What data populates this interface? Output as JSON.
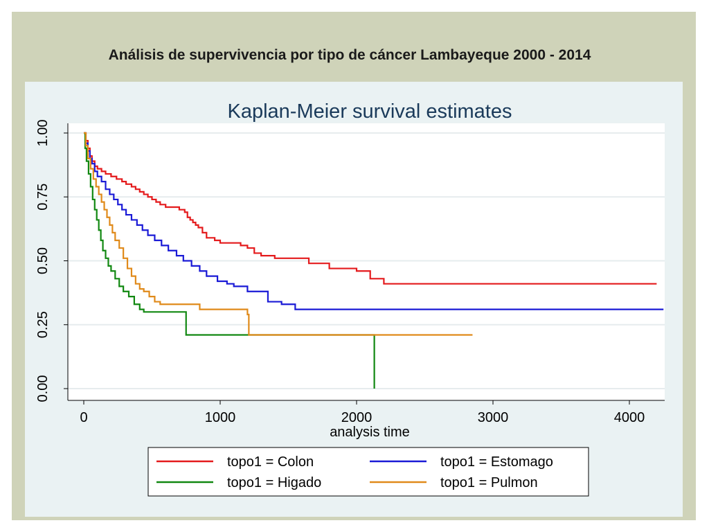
{
  "slide": {
    "title": "Análisis de supervivencia por tipo de cáncer Lambayeque 2000 - 2014"
  },
  "colors": {
    "background_frame": "#cfd3b9",
    "chart_panel": "#eaf2f3",
    "plot_area": "#ffffff",
    "title_text": "#1a3a5a"
  },
  "chart_data": {
    "type": "line",
    "title": "Kaplan-Meier survival estimates",
    "xlabel": "analysis time",
    "ylabel": "",
    "xlim": [
      0,
      4250
    ],
    "ylim": [
      0,
      1
    ],
    "x_ticks": [
      0,
      1000,
      2000,
      3000,
      4000
    ],
    "x_tick_labels": [
      "0",
      "1000",
      "2000",
      "3000",
      "4000"
    ],
    "y_ticks": [
      0,
      0.25,
      0.5,
      0.75,
      1
    ],
    "y_tick_labels": [
      "0.00",
      "0.25",
      "0.50",
      "0.75",
      "1.00"
    ],
    "grid": true,
    "legend_position": "bottom",
    "series": [
      {
        "name": "topo1 = Colon",
        "color": "#e41a1c",
        "steps": [
          [
            0,
            1.0
          ],
          [
            15,
            0.97
          ],
          [
            30,
            0.94
          ],
          [
            45,
            0.91
          ],
          [
            60,
            0.89
          ],
          [
            80,
            0.87
          ],
          [
            100,
            0.86
          ],
          [
            130,
            0.85
          ],
          [
            160,
            0.84
          ],
          [
            200,
            0.83
          ],
          [
            240,
            0.82
          ],
          [
            280,
            0.81
          ],
          [
            310,
            0.8
          ],
          [
            350,
            0.79
          ],
          [
            380,
            0.78
          ],
          [
            410,
            0.77
          ],
          [
            440,
            0.76
          ],
          [
            470,
            0.75
          ],
          [
            500,
            0.74
          ],
          [
            530,
            0.73
          ],
          [
            560,
            0.72
          ],
          [
            600,
            0.71
          ],
          [
            700,
            0.7
          ],
          [
            740,
            0.69
          ],
          [
            760,
            0.67
          ],
          [
            780,
            0.66
          ],
          [
            800,
            0.65
          ],
          [
            820,
            0.64
          ],
          [
            840,
            0.63
          ],
          [
            870,
            0.61
          ],
          [
            900,
            0.59
          ],
          [
            960,
            0.58
          ],
          [
            1000,
            0.57
          ],
          [
            1150,
            0.56
          ],
          [
            1200,
            0.55
          ],
          [
            1250,
            0.53
          ],
          [
            1300,
            0.52
          ],
          [
            1400,
            0.51
          ],
          [
            1650,
            0.49
          ],
          [
            1800,
            0.47
          ],
          [
            2000,
            0.46
          ],
          [
            2100,
            0.43
          ],
          [
            2200,
            0.41
          ],
          [
            4200,
            0.41
          ]
        ]
      },
      {
        "name": "topo1 = Estomago",
        "color": "#1a1ad6",
        "steps": [
          [
            0,
            1.0
          ],
          [
            15,
            0.96
          ],
          [
            30,
            0.93
          ],
          [
            45,
            0.9
          ],
          [
            60,
            0.88
          ],
          [
            80,
            0.85
          ],
          [
            100,
            0.83
          ],
          [
            130,
            0.81
          ],
          [
            160,
            0.78
          ],
          [
            190,
            0.76
          ],
          [
            220,
            0.74
          ],
          [
            250,
            0.72
          ],
          [
            280,
            0.7
          ],
          [
            310,
            0.68
          ],
          [
            350,
            0.66
          ],
          [
            390,
            0.64
          ],
          [
            430,
            0.62
          ],
          [
            470,
            0.6
          ],
          [
            520,
            0.58
          ],
          [
            570,
            0.56
          ],
          [
            620,
            0.54
          ],
          [
            680,
            0.52
          ],
          [
            730,
            0.5
          ],
          [
            790,
            0.48
          ],
          [
            850,
            0.46
          ],
          [
            900,
            0.44
          ],
          [
            980,
            0.42
          ],
          [
            1050,
            0.41
          ],
          [
            1100,
            0.4
          ],
          [
            1200,
            0.38
          ],
          [
            1350,
            0.34
          ],
          [
            1450,
            0.33
          ],
          [
            1550,
            0.31
          ],
          [
            4250,
            0.31
          ]
        ]
      },
      {
        "name": "topo1 = Higado",
        "color": "#118811",
        "steps": [
          [
            0,
            1.0
          ],
          [
            10,
            0.94
          ],
          [
            20,
            0.89
          ],
          [
            35,
            0.84
          ],
          [
            50,
            0.79
          ],
          [
            65,
            0.74
          ],
          [
            80,
            0.7
          ],
          [
            95,
            0.66
          ],
          [
            110,
            0.62
          ],
          [
            125,
            0.58
          ],
          [
            140,
            0.54
          ],
          [
            160,
            0.51
          ],
          [
            180,
            0.48
          ],
          [
            200,
            0.46
          ],
          [
            230,
            0.43
          ],
          [
            260,
            0.4
          ],
          [
            290,
            0.38
          ],
          [
            330,
            0.36
          ],
          [
            370,
            0.33
          ],
          [
            410,
            0.31
          ],
          [
            440,
            0.3
          ],
          [
            500,
            0.3
          ],
          [
            740,
            0.3
          ],
          [
            750,
            0.21
          ],
          [
            1000,
            0.21
          ],
          [
            2100,
            0.21
          ],
          [
            2130,
            0.0
          ]
        ]
      },
      {
        "name": "topo1 = Pulmon",
        "color": "#e08a1a",
        "steps": [
          [
            0,
            1.0
          ],
          [
            15,
            0.95
          ],
          [
            30,
            0.9
          ],
          [
            50,
            0.86
          ],
          [
            70,
            0.82
          ],
          [
            90,
            0.79
          ],
          [
            110,
            0.76
          ],
          [
            130,
            0.73
          ],
          [
            150,
            0.7
          ],
          [
            170,
            0.67
          ],
          [
            190,
            0.64
          ],
          [
            210,
            0.61
          ],
          [
            230,
            0.58
          ],
          [
            260,
            0.55
          ],
          [
            290,
            0.51
          ],
          [
            320,
            0.47
          ],
          [
            350,
            0.44
          ],
          [
            380,
            0.41
          ],
          [
            410,
            0.39
          ],
          [
            440,
            0.38
          ],
          [
            480,
            0.36
          ],
          [
            520,
            0.34
          ],
          [
            560,
            0.33
          ],
          [
            700,
            0.33
          ],
          [
            850,
            0.31
          ],
          [
            1200,
            0.29
          ],
          [
            1210,
            0.21
          ],
          [
            2000,
            0.21
          ],
          [
            2850,
            0.21
          ]
        ]
      }
    ]
  }
}
